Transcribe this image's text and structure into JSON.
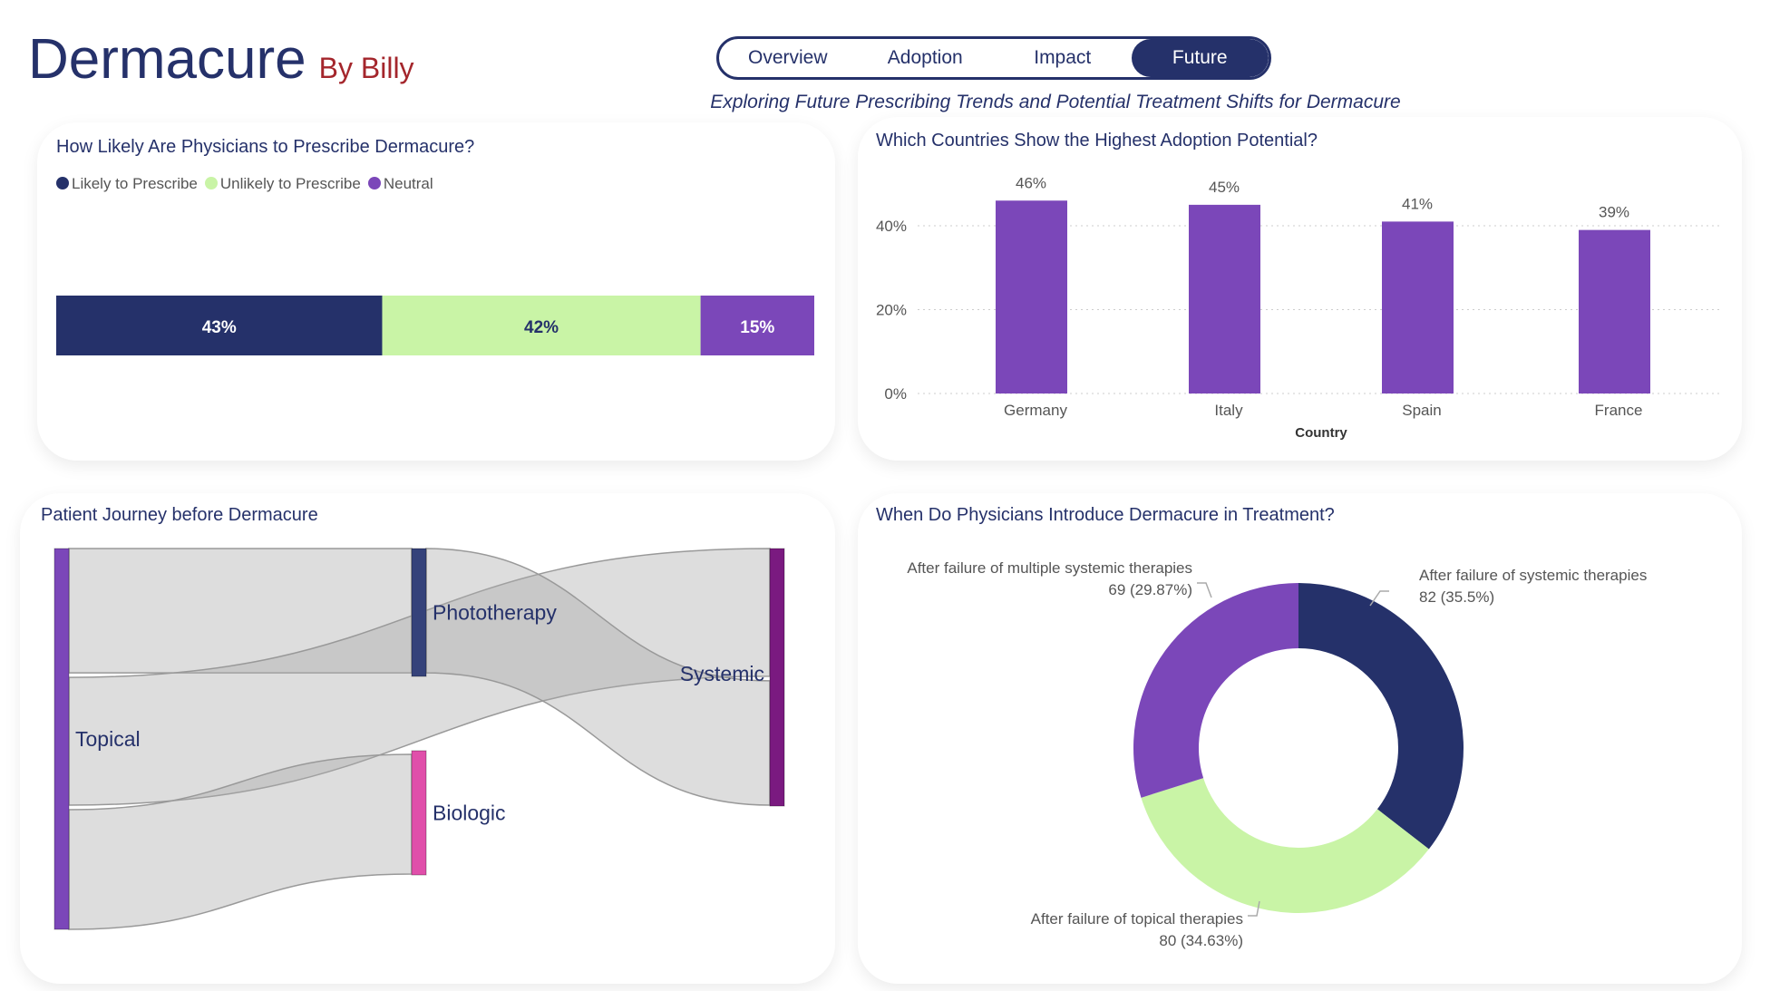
{
  "header": {
    "title": "Dermacure",
    "byline": "By Billy",
    "subtitle": "Exploring Future Prescribing Trends and Potential Treatment Shifts for Dermacure"
  },
  "nav": {
    "tabs": [
      {
        "label": "Overview"
      },
      {
        "label": "Adoption"
      },
      {
        "label": "Impact"
      },
      {
        "label": "Future"
      }
    ],
    "active": "Future"
  },
  "colors": {
    "navy": "#25316A",
    "green": "#C9F4A6",
    "purple": "#7B47B9",
    "systemic": "#7A1A80",
    "biologic": "#E04FAA",
    "title_red": "#A4262C"
  },
  "chart_data": [
    {
      "type": "bar",
      "orientation": "stacked-horizontal",
      "title": "How Likely Are Physicians to Prescribe Dermacure?",
      "legend_position": "top-left",
      "series": [
        {
          "name": "Likely to Prescribe",
          "value": 43,
          "label": "43%",
          "color": "#25316A"
        },
        {
          "name": "Unlikely to Prescribe",
          "value": 42,
          "label": "42%",
          "color": "#C9F4A6"
        },
        {
          "name": "Neutral",
          "value": 15,
          "label": "15%",
          "color": "#7B47B9"
        }
      ]
    },
    {
      "type": "bar",
      "title": "Which Countries Show the Highest Adoption Potential?",
      "xlabel": "Country",
      "ylabel": "",
      "categories": [
        "Germany",
        "Italy",
        "Spain",
        "France"
      ],
      "values": [
        46,
        45,
        41,
        39
      ],
      "labels": [
        "46%",
        "45%",
        "41%",
        "39%"
      ],
      "ylim": [
        0,
        50
      ],
      "yticks": [
        "0%",
        "20%",
        "40%"
      ],
      "grid": true,
      "color": "#7B47B9"
    },
    {
      "type": "sankey",
      "title": "Patient Journey before Dermacure",
      "nodes": [
        {
          "name": "Topical",
          "color": "#7B47B9"
        },
        {
          "name": "Phototherapy",
          "color": "#35427A"
        },
        {
          "name": "Biologic",
          "color": "#E04FAA"
        },
        {
          "name": "Systemic",
          "color": "#7A1A80"
        }
      ],
      "links": [
        {
          "source": "Topical",
          "target": "Phototherapy",
          "value": 108
        },
        {
          "source": "Topical",
          "target": "Systemic",
          "value": 111
        },
        {
          "source": "Topical",
          "target": "Biologic",
          "value": 104
        },
        {
          "source": "Phototherapy",
          "target": "Systemic",
          "value": 108
        }
      ]
    },
    {
      "type": "pie",
      "variant": "donut",
      "title": "When Do Physicians Introduce Dermacure in Treatment?",
      "slices": [
        {
          "label": "After failure of systemic therapies",
          "value": 82,
          "pct_label": "82 (35.5%)",
          "color": "#25316A"
        },
        {
          "label": "After failure of topical therapies",
          "value": 80,
          "pct_label": "80 (34.63%)",
          "color": "#C9F4A6"
        },
        {
          "label": "After failure of multiple systemic therapies",
          "value": 69,
          "pct_label": "69 (29.87%)",
          "color": "#7B47B9"
        }
      ]
    }
  ]
}
